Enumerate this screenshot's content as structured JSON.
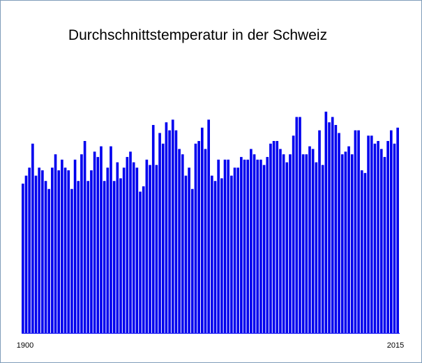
{
  "chart_data": {
    "type": "bar",
    "title": "Durchschnittstemperatur in der Schweiz",
    "xlabel": "",
    "ylabel": "",
    "tick_labels": [
      "1900",
      "2015"
    ],
    "grid": false,
    "legend": "none",
    "bar_color": "#0000ee",
    "ylim": [
      0,
      100
    ],
    "categories": [
      1900,
      1901,
      1902,
      1903,
      1904,
      1905,
      1906,
      1907,
      1908,
      1909,
      1910,
      1911,
      1912,
      1913,
      1914,
      1915,
      1916,
      1917,
      1918,
      1919,
      1920,
      1921,
      1922,
      1923,
      1924,
      1925,
      1926,
      1927,
      1928,
      1929,
      1930,
      1931,
      1932,
      1933,
      1934,
      1935,
      1936,
      1937,
      1938,
      1939,
      1940,
      1941,
      1942,
      1943,
      1944,
      1945,
      1946,
      1947,
      1948,
      1949,
      1950,
      1951,
      1952,
      1953,
      1954,
      1955,
      1956,
      1957,
      1958,
      1959,
      1960,
      1961,
      1962,
      1963,
      1964,
      1965,
      1966,
      1967,
      1968,
      1969,
      1970,
      1971,
      1972,
      1973,
      1974,
      1975,
      1976,
      1977,
      1978,
      1979,
      1980,
      1981,
      1982,
      1983,
      1984,
      1985,
      1986,
      1987,
      1988,
      1989,
      1990,
      1991,
      1992,
      1993,
      1994,
      1995,
      1996,
      1997,
      1998,
      1999,
      2000,
      2001,
      2002,
      2003,
      2004,
      2005,
      2006,
      2007,
      2008,
      2009,
      2010,
      2011,
      2012,
      2013,
      2014,
      2015
    ],
    "values": [
      56,
      59,
      62,
      71,
      59,
      62,
      61,
      57,
      54,
      62,
      67,
      61,
      65,
      62,
      61,
      54,
      65,
      57,
      67,
      72,
      57,
      61,
      68,
      66,
      70,
      57,
      62,
      70,
      57,
      64,
      58,
      62,
      66,
      68,
      64,
      62,
      53,
      55,
      65,
      63,
      78,
      63,
      75,
      71,
      79,
      76,
      80,
      76,
      69,
      67,
      59,
      62,
      54,
      71,
      72,
      77,
      69,
      80,
      59,
      57,
      65,
      58,
      65,
      65,
      59,
      62,
      62,
      66,
      65,
      65,
      69,
      67,
      65,
      65,
      63,
      66,
      71,
      72,
      72,
      69,
      67,
      64,
      67,
      74,
      81,
      81,
      67,
      67,
      70,
      69,
      64,
      76,
      63,
      83,
      79,
      81,
      78,
      75,
      67,
      68,
      70,
      67,
      76,
      76,
      61,
      60,
      74,
      74,
      71,
      72,
      69,
      66,
      72,
      76,
      71,
      77
    ]
  }
}
